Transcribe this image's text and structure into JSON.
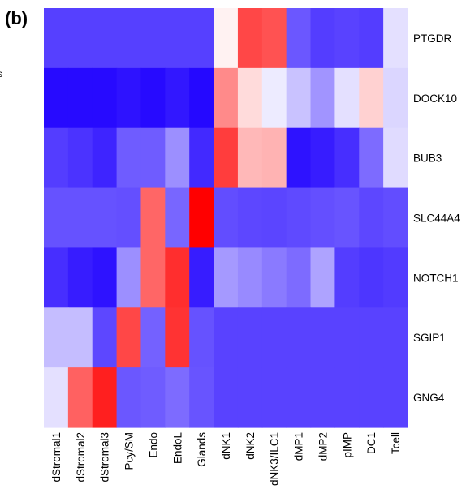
{
  "panel_label": "(b)",
  "stray_glyph": "s",
  "chart_data": {
    "type": "heatmap",
    "title": "",
    "xlabel": "",
    "ylabel": "",
    "columns": [
      "dStromal1",
      "dStromal2",
      "dStromal3",
      "Pcy/SM",
      "Endo",
      "EndoL",
      "Glands",
      "dNK1",
      "dNK2",
      "dNK3/ILC1",
      "dMP1",
      "dMP2",
      "pIMP",
      "DC1",
      "Tcell"
    ],
    "rows": [
      "PTGDR",
      "DOCK10",
      "BUB3",
      "SLC44A4",
      "NOTCH1",
      "SGIP1",
      "GNG4"
    ],
    "value_range": [
      -1,
      1
    ],
    "colorscale": {
      "low": "#1e00ff",
      "mid": "#ffffff",
      "high": "#ff0000"
    },
    "values": [
      [
        -0.75,
        -0.75,
        -0.75,
        -0.75,
        -0.75,
        -0.75,
        -0.75,
        0.05,
        0.72,
        0.68,
        -0.66,
        -0.76,
        -0.74,
        -0.76,
        -0.12
      ],
      [
        -0.96,
        -0.96,
        -0.96,
        -0.93,
        -0.96,
        -0.91,
        -0.97,
        0.46,
        0.14,
        -0.08,
        -0.24,
        -0.42,
        -0.12,
        0.18,
        -0.16
      ],
      [
        -0.76,
        -0.8,
        -0.86,
        -0.64,
        -0.64,
        -0.44,
        -0.84,
        0.76,
        0.28,
        0.3,
        -0.93,
        -0.89,
        -0.82,
        -0.58,
        -0.14
      ],
      [
        -0.68,
        -0.68,
        -0.68,
        -0.69,
        0.6,
        -0.6,
        1.0,
        -0.7,
        -0.72,
        -0.73,
        -0.71,
        -0.69,
        -0.67,
        -0.72,
        -0.7
      ],
      [
        -0.82,
        -0.89,
        -0.93,
        -0.44,
        0.6,
        0.82,
        -0.89,
        -0.4,
        -0.46,
        -0.52,
        -0.58,
        -0.36,
        -0.76,
        -0.79,
        -0.77
      ],
      [
        -0.26,
        -0.26,
        -0.72,
        0.72,
        -0.62,
        0.8,
        -0.68,
        -0.74,
        -0.74,
        -0.74,
        -0.74,
        -0.74,
        -0.74,
        -0.74,
        -0.74
      ],
      [
        -0.12,
        0.62,
        0.88,
        -0.66,
        -0.64,
        -0.58,
        -0.67,
        -0.74,
        -0.74,
        -0.74,
        -0.74,
        -0.74,
        -0.74,
        -0.74,
        -0.74
      ]
    ]
  }
}
